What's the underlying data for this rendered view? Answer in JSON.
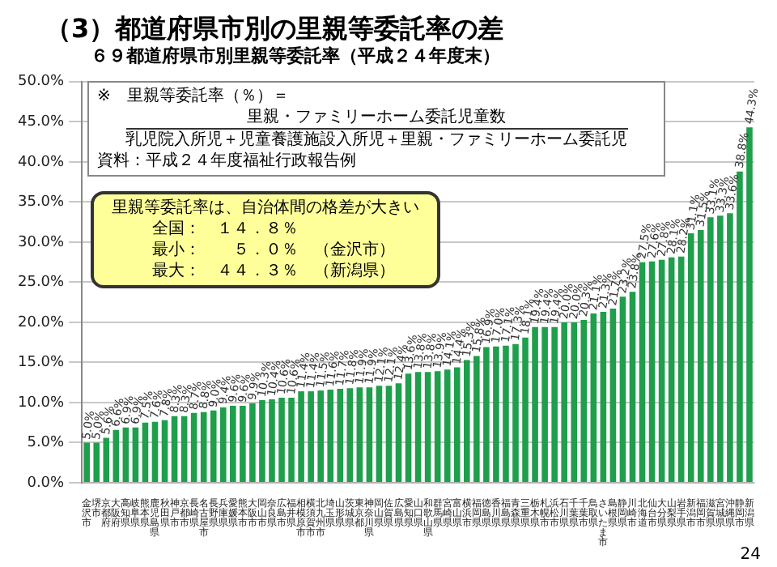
{
  "chart_data": {
    "type": "bar",
    "title": "（3）都道府県市別の里親等委託率の差",
    "subtitle": "６９都道府県市別里親等委託率（平成２４年度末）",
    "categories": [
      "金沢市",
      "堺市",
      "京都府",
      "大阪府",
      "高知県",
      "岐阜県",
      "熊本県",
      "鹿児島県",
      "秋田県",
      "神戸市",
      "京都市",
      "長崎県",
      "名古屋市",
      "長野県",
      "兵庫県",
      "愛媛県",
      "熊本市",
      "大阪市",
      "岡山市",
      "奈良県",
      "広島市",
      "福井県",
      "相模原市",
      "横須賀市",
      "北九州市",
      "埼玉県",
      "山形県",
      "茨城県",
      "東京都",
      "神奈川県",
      "岡山県",
      "佐賀県",
      "広島県",
      "愛知県",
      "山口県",
      "和歌山県",
      "群馬県",
      "宮崎県",
      "富山県",
      "横浜市",
      "福岡県",
      "徳島県",
      "香川県",
      "福島県",
      "青森県",
      "三重県",
      "栃木県",
      "札幌市",
      "浜松市",
      "石川県",
      "千葉県",
      "千葉市",
      "鳥取県",
      "さいたま市",
      "島根県",
      "静岡県",
      "川崎市",
      "北海道",
      "仙台市",
      "大分県",
      "山梨県",
      "岩手県",
      "新潟市",
      "福岡市",
      "滋賀県",
      "宮城県",
      "沖縄県",
      "静岡市",
      "新潟県"
    ],
    "values": [
      5.0,
      5.0,
      5.6,
      6.6,
      6.9,
      6.9,
      7.5,
      7.6,
      7.8,
      8.3,
      8.3,
      8.7,
      8.8,
      9.0,
      9.4,
      9.6,
      9.6,
      9.9,
      10.3,
      10.4,
      10.6,
      10.6,
      11.4,
      11.4,
      11.5,
      11.6,
      11.7,
      11.8,
      11.9,
      11.9,
      12.1,
      12.1,
      12.4,
      13.6,
      13.8,
      13.8,
      13.9,
      14.1,
      14.4,
      15.3,
      15.8,
      16.9,
      17.0,
      17.1,
      17.3,
      18.1,
      19.4,
      19.4,
      19.4,
      20.0,
      20.0,
      20.3,
      21.1,
      21.3,
      21.7,
      23.2,
      23.8,
      27.5,
      27.6,
      27.8,
      28.1,
      28.2,
      31.1,
      31.5,
      33.1,
      33.3,
      33.6,
      38.8,
      44.3
    ],
    "value_labels": [
      "5.0%",
      "5.0%",
      "5.6%",
      "6.6%",
      "6.9%",
      "6.9%",
      "7.5%",
      "7.6%",
      "7.8%",
      "8.3%",
      "8.3%",
      "8.7%",
      "8.8%",
      "9.0%",
      "9.4%",
      "9.6%",
      "9.6%",
      "9.9%",
      "10.3%",
      "10.4%",
      "10.6%",
      "10.6%",
      "11.4%",
      "11.4%",
      "11.5%",
      "11.6%",
      "11.7%",
      "11.8%",
      "11.9%",
      "11.9%",
      "12.1%",
      "12.1%",
      "12.4%",
      "13.6%",
      "13.8%",
      "13.8%",
      "13.9%",
      "14.1%",
      "14.4%",
      "15.3%",
      "15.8%",
      "16.9%",
      "17.0%",
      "17.1%",
      "17.3%",
      "18.1%",
      "19.4%",
      "19.4%",
      "19.4%",
      "20.0%",
      "20.0%",
      "20.3%",
      "21.1%",
      "21.3%",
      "21.7%",
      "23.2%",
      "23.8%",
      "27.5%",
      "27.6%",
      "27.8%",
      "28.1%",
      "28.2%",
      "31.1%",
      "31.5%",
      "33.1%",
      "33.3%",
      "33.6%",
      "38.8%",
      "44.3%"
    ],
    "color": "#1f9e4c",
    "ylim": [
      0,
      50
    ],
    "yticks": [
      {
        "value": 0,
        "label": "0.0%"
      },
      {
        "value": 5,
        "label": "5.0%"
      },
      {
        "value": 10,
        "label": "10.0%"
      },
      {
        "value": 15,
        "label": "15.0%"
      },
      {
        "value": 20,
        "label": "20.0%"
      },
      {
        "value": 25,
        "label": "25.0%"
      },
      {
        "value": 30,
        "label": "30.0%"
      },
      {
        "value": 35,
        "label": "35.0%"
      },
      {
        "value": 40,
        "label": "40.0%"
      },
      {
        "value": 45,
        "label": "45.0%"
      },
      {
        "value": 50,
        "label": "50.0%"
      }
    ],
    "grid": "y",
    "annotations": [
      "里親等委託率は、自治体間の格差が大きい",
      "全国：　１４．８％",
      "最小：　　５．０％　（金沢市）",
      "最大：　４４．３％　（新潟県）",
      "※　里親等委託率（％）＝",
      "里親・ファミリーホーム委託児童数",
      "乳児院入所児＋児童養護施設入所児＋里親・ファミリーホーム委託児",
      "資料：平成２４年度福祉行政報告例",
      "24"
    ]
  }
}
